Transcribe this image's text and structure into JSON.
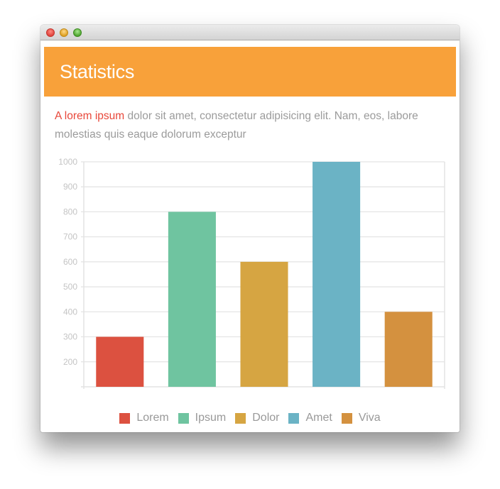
{
  "header": {
    "title": "Statistics"
  },
  "intro": {
    "highlight": "A lorem ipsum",
    "rest": " dolor sit amet, consectetur adipisicing elit. Nam, eos, labore molestias quis eaque dolorum exceptur"
  },
  "colors": {
    "header_bg": "#f8a13a",
    "highlight": "#e8473a",
    "grid": "#e3e3e3",
    "tick_label": "#c4c4c4"
  },
  "chart_data": {
    "type": "bar",
    "categories": [
      "Lorem",
      "Ipsum",
      "Dolor",
      "Amet",
      "Viva"
    ],
    "values": [
      300,
      800,
      600,
      1000,
      400
    ],
    "colors": [
      "#dc5140",
      "#6fc4a0",
      "#d6a542",
      "#6bb3c5",
      "#d4913f"
    ],
    "ylim": [
      100,
      1000
    ],
    "yticks": [
      200,
      300,
      400,
      500,
      600,
      700,
      800,
      900,
      1000
    ],
    "ytick_labels": [
      "200",
      "300",
      "400",
      "500",
      "600",
      "700",
      "800",
      "900",
      "1000"
    ],
    "grid": true,
    "legend_position": "bottom",
    "title": "",
    "xlabel": "",
    "ylabel": ""
  }
}
